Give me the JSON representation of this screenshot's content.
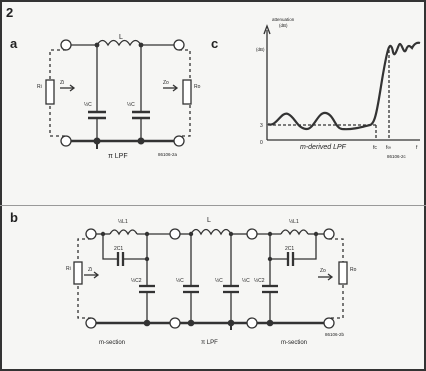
{
  "figure_number": "2",
  "panels": {
    "a": {
      "label": "a",
      "inductor": "L",
      "source": "Ri",
      "input": "Zi",
      "output": "Zo",
      "load": "Ro",
      "cap_left": "½C",
      "cap_right": "½C",
      "caption": "π LPF",
      "code": "86106-2a"
    },
    "b": {
      "label": "b",
      "source": "Ri",
      "input": "Zi",
      "output": "Zo",
      "load": "Ro",
      "left": {
        "inductor": "½L1",
        "series_cap": "2C1",
        "shunt_cap": "½C2",
        "caption": "m-section"
      },
      "middle": {
        "inductor": "L",
        "cap_left": "½C",
        "cap_mid": "½C",
        "cap_right": "½C",
        "caption": "π LPF"
      },
      "right": {
        "inductor": "½L1",
        "series_cap": "2C1",
        "shunt_cap": "½C2",
        "caption": "m-section"
      },
      "code": "86106-2b"
    },
    "c": {
      "label": "c",
      "ylabel_top": "attenuation",
      "ylabel_unit": "(dB)",
      "y_top": "(dB)",
      "y_three": "3",
      "origin": "0",
      "x_fc": "fc",
      "x_finf": "f∞",
      "x_end": "f",
      "caption": "m-derived LPF",
      "code": "86106-2c"
    }
  }
}
